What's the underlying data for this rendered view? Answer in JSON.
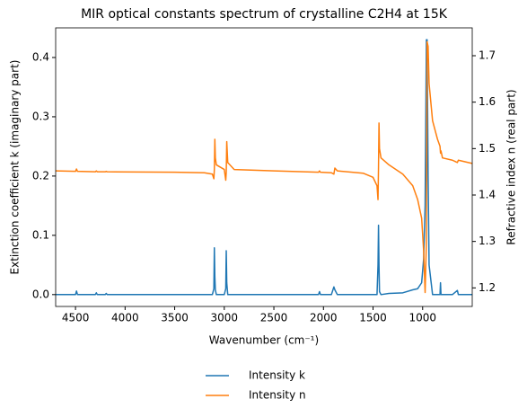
{
  "chart_data": {
    "type": "line",
    "title": "MIR optical constants spectrum of crystalline C2H4 at 15K",
    "x_label": "Wavenumber (cm⁻¹)",
    "y_label": "Extinction coefficient k (imaginary part)",
    "y2_label": "Refractive index n (real part)",
    "x": [
      4700,
      4500,
      4490,
      4480,
      4300,
      4290,
      4280,
      4200,
      4190,
      4180,
      3500,
      3200,
      3120,
      3105,
      3100,
      3095,
      3090,
      3080,
      3000,
      2985,
      2980,
      2975,
      2965,
      2900,
      2500,
      2050,
      2040,
      2030,
      1920,
      1895,
      1885,
      1860,
      1600,
      1500,
      1460,
      1450,
      1445,
      1440,
      1435,
      1420,
      1340,
      1200,
      1100,
      1050,
      1010,
      990,
      975,
      962,
      955,
      945,
      935,
      900,
      850,
      825,
      820,
      815,
      800,
      700,
      650,
      640,
      500
    ],
    "series": [
      {
        "name": "Intensity k",
        "color": "#1f77b4",
        "values": [
          0,
          0,
          0.006,
          0,
          0,
          0.003,
          0,
          0,
          0.002,
          0,
          0,
          0,
          0,
          0.01,
          0.079,
          0.03,
          0.008,
          0,
          0,
          0.01,
          0.074,
          0.02,
          0,
          0,
          0,
          0,
          0.005,
          0,
          0,
          0.013,
          0.008,
          0,
          0,
          0,
          0,
          0.05,
          0.117,
          0.05,
          0.005,
          0,
          0.002,
          0.003,
          0.008,
          0.01,
          0.02,
          0.06,
          0.15,
          0.43,
          0.43,
          0.2,
          0.05,
          0,
          0,
          0,
          0.02,
          0,
          0,
          0,
          0.007,
          0,
          0
        ]
      },
      {
        "name": "Intensity n",
        "color": "#ff7f0e",
        "axis": "y2",
        "values": [
          1.452,
          1.451,
          1.456,
          1.451,
          1.45,
          1.452,
          1.45,
          1.45,
          1.451,
          1.45,
          1.449,
          1.448,
          1.445,
          1.435,
          1.455,
          1.52,
          1.48,
          1.465,
          1.455,
          1.432,
          1.45,
          1.515,
          1.47,
          1.455,
          1.452,
          1.449,
          1.452,
          1.449,
          1.448,
          1.445,
          1.458,
          1.452,
          1.447,
          1.438,
          1.42,
          1.39,
          1.46,
          1.555,
          1.5,
          1.48,
          1.465,
          1.445,
          1.42,
          1.39,
          1.35,
          1.28,
          1.19,
          1.3,
          1.73,
          1.72,
          1.64,
          1.56,
          1.52,
          1.505,
          1.49,
          1.495,
          1.48,
          1.475,
          1.47,
          1.475,
          1.468
        ]
      }
    ],
    "xlim": [
      4700,
      500
    ],
    "xticks": [
      4500,
      4000,
      3500,
      3000,
      2500,
      2000,
      1500,
      1000
    ],
    "ylim": [
      -0.02,
      0.45
    ],
    "yticks": [
      {
        "value": 0,
        "label": "0.0"
      },
      0.1,
      0.2,
      0.3,
      0.4
    ],
    "y2lim": [
      1.16,
      1.76
    ],
    "y2ticks": [
      1.2,
      1.3,
      1.4,
      1.5,
      1.6,
      1.7
    ],
    "grid": false,
    "legend": "bottom"
  }
}
